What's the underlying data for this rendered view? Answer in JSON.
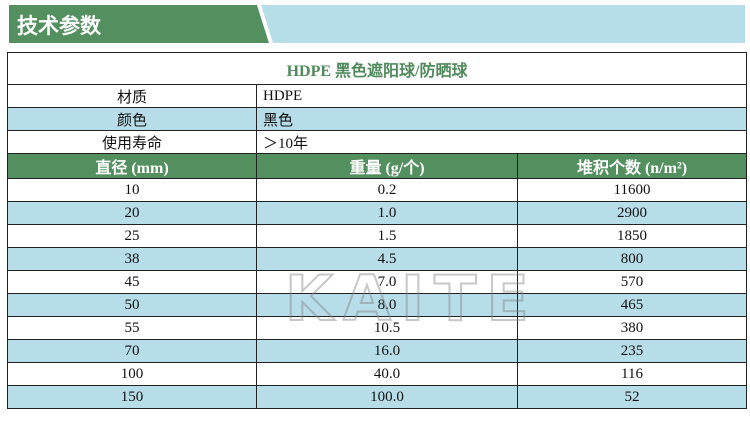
{
  "banner": {
    "title": "技术参数"
  },
  "table": {
    "title": "HDPE 黑色遮阳球/防晒球",
    "props": [
      {
        "label": "材质",
        "value": "HDPE"
      },
      {
        "label": "颜色",
        "value": "黑色"
      },
      {
        "label": "使用寿命",
        "value": "＞10年"
      }
    ],
    "headers": [
      "直径 (mm)",
      "重量 (g/个)",
      "堆积个数 (n/m²)"
    ],
    "rows": [
      [
        "10",
        "0.2",
        "11600"
      ],
      [
        "20",
        "1.0",
        "2900"
      ],
      [
        "25",
        "1.5",
        "1850"
      ],
      [
        "38",
        "4.5",
        "800"
      ],
      [
        "45",
        "7.0",
        "570"
      ],
      [
        "50",
        "8.0",
        "465"
      ],
      [
        "55",
        "10.5",
        "380"
      ],
      [
        "70",
        "16.0",
        "235"
      ],
      [
        "100",
        "40.0",
        "116"
      ],
      [
        "150",
        "100.0",
        "52"
      ]
    ]
  },
  "watermark": "KAITE",
  "colors": {
    "green": "#548f5f",
    "light_blue": "#b7dde8"
  }
}
